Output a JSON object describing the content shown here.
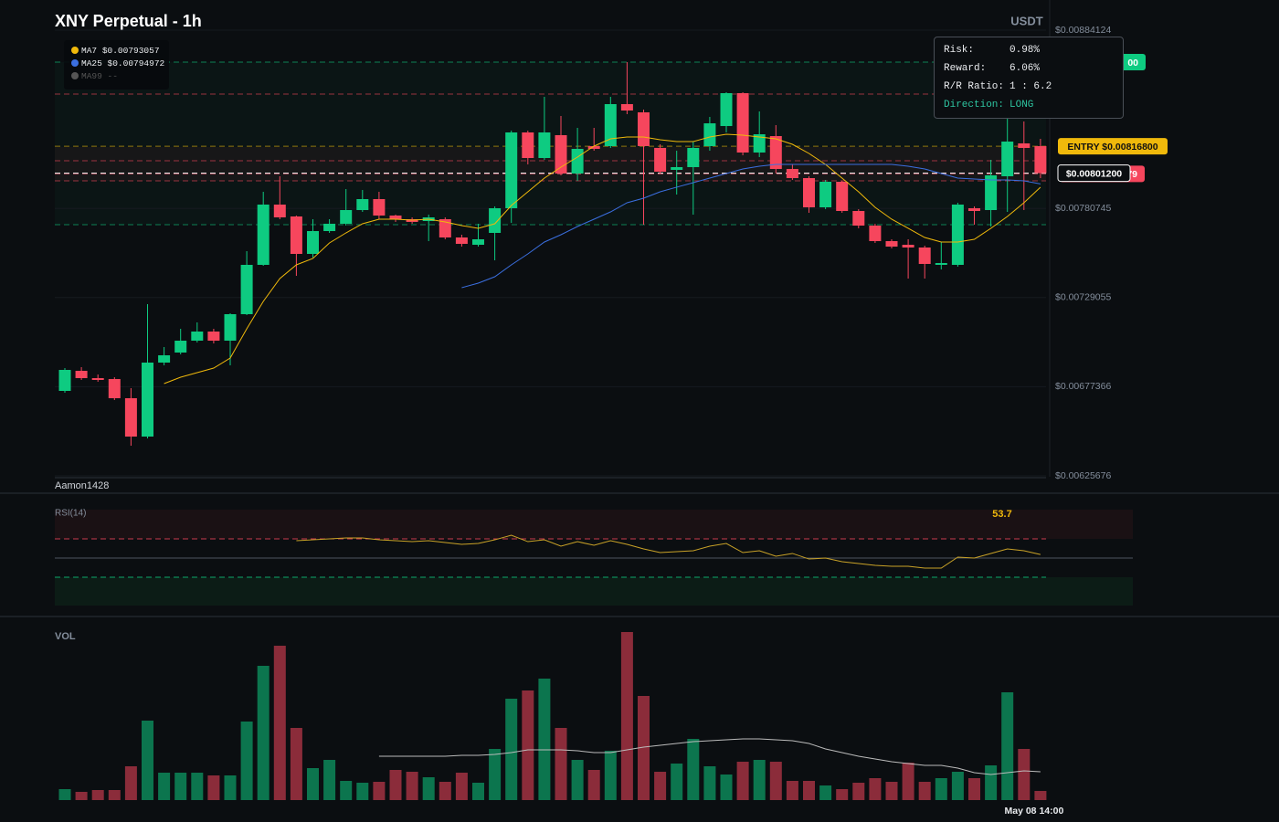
{
  "chart_data": [
    {
      "type": "candlestick",
      "title": "XNY Perpetual - 1h",
      "unit": "USDT",
      "watermark": "Aamon1428",
      "up_color": "#0ecb81",
      "down_color": "#f6465d",
      "open": [
        0.0067493,
        0.0068658,
        0.0068234,
        0.0068182,
        0.0067069,
        0.0064845,
        0.0069135,
        0.0069717,
        0.0070406,
        0.0070935,
        0.0070406,
        0.0071942,
        0.0074802,
        0.0078297,
        0.0077609,
        0.0075437,
        0.0076761,
        0.0077185,
        0.0077979,
        0.0078615,
        0.0077662,
        0.007745,
        0.0077344,
        0.007745,
        0.007639,
        0.0075967,
        0.0076655,
        0.0078085,
        0.0082481,
        0.0080998,
        0.0082322,
        0.0080098,
        0.0081687,
        0.0081687,
        0.0084123,
        0.0083646,
        0.0081581,
        0.008031,
        0.0080469,
        0.0081687,
        0.0082852,
        0.0084758,
        0.0081316,
        0.0082269,
        0.0080362,
        0.0079833,
        0.0078138,
        0.0079621,
        0.0077926,
        0.0077079,
        0.0076179,
        0.0075967,
        0.0075808,
        0.0074802,
        0.0074802,
        0.0078085,
        0.0077979,
        0.0079939,
        0.0081846,
        0.0081687
      ],
      "high": [
        0.0068817,
        0.006887,
        0.0068446,
        0.0068287,
        0.0067652,
        0.0072524,
        0.0070035,
        0.0071094,
        0.0071465,
        0.0071094,
        0.0071995,
        0.0075596,
        0.0079038,
        0.0079939,
        0.0077662,
        0.007745,
        0.007745,
        0.0079197,
        0.0079144,
        0.0079038,
        0.0077714,
        0.0077556,
        0.0077714,
        0.0077556,
        0.0076549,
        0.0077185,
        0.0078191,
        0.0082587,
        0.0082587,
        0.0084546,
        0.0083434,
        0.0082746,
        0.0082746,
        0.0084546,
        0.0086559,
        0.0083805,
        0.0081792,
        0.0081422,
        0.0081951,
        0.0083381,
        0.0084811,
        0.0084811,
        0.0083699,
        0.0082905,
        0.0080627,
        0.0079939,
        0.0079727,
        0.0079674,
        0.0078032,
        0.0077185,
        0.0076284,
        0.0076284,
        0.0075914,
        0.0076126,
        0.0078403,
        0.0078191,
        0.0080892,
        0.0083276,
        0.0083117,
        0.008211
      ],
      "low": [
        0.0067387,
        0.0068128,
        0.0068023,
        0.0066963,
        0.0064315,
        0.0064739,
        0.0068976,
        0.0069611,
        0.00703,
        0.0070247,
        0.0068976,
        0.0071889,
        0.0074749,
        0.007745,
        0.0074166,
        0.0075225,
        0.0076655,
        0.0077079,
        0.0077873,
        0.007745,
        0.0077291,
        0.0077185,
        0.0076179,
        0.0076284,
        0.0075861,
        0.0075861,
        0.0075066,
        0.0077238,
        0.0080627,
        0.0080892,
        0.0079992,
        0.0079674,
        0.0081422,
        0.0081581,
        0.008354,
        0.0077132,
        0.0080098,
        0.007888,
        0.0077714,
        0.0081422,
        0.0082481,
        0.0081157,
        0.0081051,
        0.0080098,
        0.0079727,
        0.007782,
        0.0078032,
        0.007782,
        0.007692,
        0.0076073,
        0.0075755,
        0.0074007,
        0.0074007,
        0.0074537,
        0.0074696,
        0.0077132,
        0.0077026,
        0.0077873,
        0.0077979,
        0.0079833
      ],
      "close": [
        0.0068711,
        0.0068234,
        0.0068128,
        0.0067069,
        0.0064845,
        0.0069135,
        0.0069558,
        0.0070406,
        0.0070935,
        0.0070406,
        0.0071942,
        0.0074802,
        0.0078297,
        0.0077556,
        0.0075437,
        0.0076761,
        0.0077185,
        0.0077979,
        0.0078615,
        0.0077662,
        0.007745,
        0.0077291,
        0.0077556,
        0.007639,
        0.007602,
        0.0076284,
        0.0078085,
        0.0082481,
        0.0080998,
        0.0082481,
        0.0080098,
        0.0081528,
        0.0081528,
        0.0084123,
        0.0083752,
        0.0081687,
        0.0080204,
        0.0080469,
        0.0081581,
        0.0083009,
        0.0084758,
        0.0081316,
        0.0082375,
        0.0080362,
        0.0079833,
        0.0078138,
        0.0079621,
        0.0077926,
        0.0077079,
        0.0076179,
        0.0075861,
        0.0075808,
        0.0074855,
        0.0074908,
        0.0078297,
        0.0077926,
        0.0079992,
        0.0081951,
        0.0081581,
        0.008012
      ],
      "ylim": [
        0.00625676,
        0.00884124
      ],
      "yticks": [
        {
          "value": 0.00625676,
          "label": "$0.00625676"
        },
        {
          "value": 0.00677366,
          "label": "$0.00677366"
        },
        {
          "value": 0.00729055,
          "label": "$0.00729055"
        },
        {
          "value": 0.00780745,
          "label": "$0.00780745"
        },
        {
          "value": 0.00884124,
          "label": "$0.00884124"
        }
      ],
      "series": [
        {
          "name": "MA7",
          "value_label": "$0.00793057",
          "color": "#f0b90b",
          "values": [
            null,
            null,
            null,
            null,
            null,
            null,
            0.0067917,
            0.0068287,
            0.0068552,
            0.0068817,
            0.00694,
            0.0071094,
            0.0072683,
            0.0074007,
            0.0074802,
            0.0075172,
            0.0076073,
            0.0076655,
            0.0077185,
            0.007745,
            0.007745,
            0.0077397,
            0.007745,
            0.0077291,
            0.0077079,
            0.007692,
            0.0077185,
            0.0078244,
            0.0079038,
            0.0079833,
            0.0080469,
            0.0081051,
            0.0081687,
            0.008211,
            0.0082216,
            0.0082216,
            0.0082057,
            0.0081951,
            0.0081951,
            0.0082216,
            0.0082375,
            0.0082322,
            0.0082216,
            0.008211,
            0.0081792,
            0.0081263,
            0.0080627,
            0.0079833,
            0.0079038,
            0.0078138,
            0.007745,
            0.007692,
            0.007639,
            0.0076126,
            0.0076126,
            0.0076284,
            0.007692,
            0.0077609,
            0.0078403,
            0.00793057
          ]
        },
        {
          "name": "MA25",
          "value_label": "$0.00794972",
          "color": "#3b6fe0",
          "values": [
            null,
            null,
            null,
            null,
            null,
            null,
            null,
            null,
            null,
            null,
            null,
            null,
            null,
            null,
            null,
            null,
            null,
            null,
            null,
            null,
            null,
            null,
            null,
            null,
            0.0073478,
            0.0073742,
            0.0074113,
            0.0074802,
            0.0075437,
            0.0076126,
            0.0076549,
            0.0077026,
            0.007745,
            0.0077873,
            0.0078403,
            0.0078668,
            0.0079038,
            0.0079306,
            0.0079568,
            0.0079833,
            0.0080098,
            0.0080362,
            0.0080521,
            0.0080627,
            0.0080627,
            0.0080627,
            0.0080627,
            0.0080627,
            0.0080627,
            0.0080627,
            0.0080627,
            0.0080521,
            0.0080362,
            0.0080098,
            0.0079833,
            0.007978,
            0.0079727,
            0.0079727,
            0.0079674,
            0.00794972
          ]
        },
        {
          "name": "MA99",
          "value_label": "--",
          "color": "#555555",
          "values": []
        }
      ],
      "levels": [
        {
          "value": 0.008656,
          "color": "#0ecb81",
          "label": "00"
        },
        {
          "value": 0.0084705,
          "color": "#f6465d"
        },
        {
          "value": 0.008168,
          "color": "#f0b90b",
          "label": "ENTRY $0.00816800"
        },
        {
          "value": 0.0080839,
          "color": "#f6465d"
        },
        {
          "value": 0.0080079,
          "color": "#f6465d",
          "label": "79"
        },
        {
          "value": 0.008012,
          "color": "#ffffff",
          "label": "$0.00801200"
        },
        {
          "value": 0.0079674,
          "color": "#f6465d"
        },
        {
          "value": 0.0077132,
          "color": "#0ecb81"
        }
      ],
      "tooltip": [
        {
          "label": "Risk:",
          "value": "0.98%"
        },
        {
          "label": "Reward:",
          "value": "6.06%"
        },
        {
          "label": "R/R Ratio:",
          "value": "1 : 6.2"
        },
        {
          "label": "Direction:",
          "value": "LONG"
        }
      ]
    },
    {
      "type": "line",
      "title": "RSI(14)",
      "color": "#c9a227",
      "value_label": "53.7",
      "ylim": [
        0,
        100
      ],
      "levels": [
        {
          "value": 70,
          "color": "#f6465d"
        },
        {
          "value": 50,
          "color": "#5e6673"
        },
        {
          "value": 30,
          "color": "#0ecb81"
        }
      ],
      "values": [
        null,
        null,
        null,
        null,
        null,
        null,
        null,
        null,
        null,
        null,
        null,
        null,
        null,
        null,
        68.1,
        69.0,
        70.0,
        71.0,
        71.0,
        69.0,
        68.1,
        67.1,
        68.1,
        66.2,
        64.3,
        65.2,
        69.0,
        73.8,
        67.1,
        69.0,
        62.4,
        67.1,
        63.3,
        68.1,
        64.3,
        59.5,
        55.7,
        56.7,
        57.6,
        62.4,
        65.2,
        55.7,
        57.6,
        51.9,
        54.8,
        49.0,
        50.0,
        46.2,
        44.3,
        42.4,
        41.4,
        41.4,
        39.5,
        39.5,
        51.0,
        50.0,
        54.8,
        59.5,
        57.6,
        53.7
      ]
    },
    {
      "type": "bar",
      "title": "VOL",
      "ylim": [
        0,
        184
      ],
      "ma_color": "#bbbbbb",
      "categories": [
        null,
        null,
        null,
        null,
        null,
        null,
        null,
        null,
        null,
        null,
        null,
        null,
        null,
        null,
        null,
        null,
        null,
        null,
        null,
        null,
        null,
        null,
        null,
        null,
        null,
        null,
        null,
        null,
        null,
        null,
        null,
        null,
        null,
        null,
        null,
        null,
        null,
        null,
        null,
        null,
        null,
        null,
        null,
        null,
        null,
        null,
        null,
        null,
        null,
        null,
        null,
        null,
        null,
        null,
        null,
        null,
        null,
        null,
        null,
        "May 08 14:00"
      ],
      "values": [
        12,
        9,
        11,
        11,
        37,
        87,
        30,
        30,
        30,
        27,
        27,
        86,
        147,
        169,
        79,
        35,
        44,
        21,
        19,
        20,
        33,
        31,
        25,
        20,
        30,
        19,
        56,
        111,
        120,
        133,
        79,
        44,
        33,
        54,
        184,
        114,
        31,
        40,
        67,
        37,
        28,
        42,
        44,
        42,
        21,
        21,
        16,
        12,
        19,
        24,
        20,
        41,
        20,
        24,
        31,
        24,
        38,
        118,
        56,
        10
      ],
      "ma_values": [
        null,
        null,
        null,
        null,
        null,
        null,
        null,
        null,
        null,
        null,
        null,
        null,
        null,
        null,
        null,
        null,
        null,
        null,
        null,
        48,
        48,
        48,
        48,
        48,
        49,
        49,
        50,
        52,
        55,
        55,
        55,
        54,
        52,
        52,
        55,
        58,
        60,
        62,
        64,
        65,
        66,
        67,
        67,
        66,
        65,
        62,
        56,
        52,
        48,
        45,
        42,
        40,
        38,
        38,
        35,
        30,
        28,
        30,
        32,
        31
      ]
    }
  ]
}
